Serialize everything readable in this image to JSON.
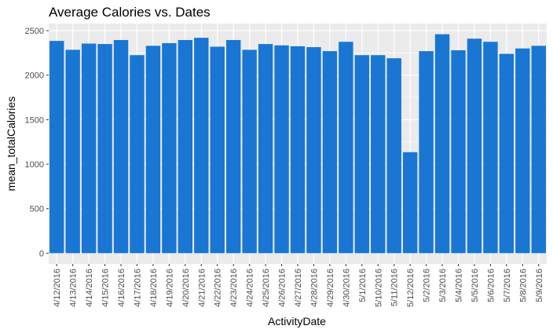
{
  "chart_data": {
    "type": "bar",
    "title": "Average Calories vs. Dates",
    "xlabel": "ActivityDate",
    "ylabel": "mean_totalCalories",
    "categories": [
      "4/12/2016",
      "4/13/2016",
      "4/14/2016",
      "4/15/2016",
      "4/16/2016",
      "4/17/2016",
      "4/18/2016",
      "4/19/2016",
      "4/20/2016",
      "4/21/2016",
      "4/22/2016",
      "4/23/2016",
      "4/24/2016",
      "4/25/2016",
      "4/26/2016",
      "4/27/2016",
      "4/28/2016",
      "4/29/2016",
      "4/30/2016",
      "5/1/2016",
      "5/10/2016",
      "5/11/2016",
      "5/12/2016",
      "5/2/2016",
      "5/3/2016",
      "5/4/2016",
      "5/5/2016",
      "5/6/2016",
      "5/7/2016",
      "5/8/2016",
      "5/9/2016"
    ],
    "values": [
      2385,
      2285,
      2355,
      2350,
      2395,
      2225,
      2330,
      2360,
      2395,
      2420,
      2320,
      2395,
      2285,
      2350,
      2335,
      2325,
      2315,
      2270,
      2375,
      2225,
      2225,
      2190,
      1135,
      2270,
      2460,
      2280,
      2410,
      2375,
      2240,
      2300,
      2330
    ],
    "yticks": [
      0,
      500,
      1000,
      1500,
      2000,
      2500
    ],
    "ylim": [
      -120,
      2580
    ],
    "bar_color": "#1976d2",
    "panel_color": "#ebebeb",
    "grid_color": "#ffffff",
    "grid": true,
    "legend": "none"
  }
}
